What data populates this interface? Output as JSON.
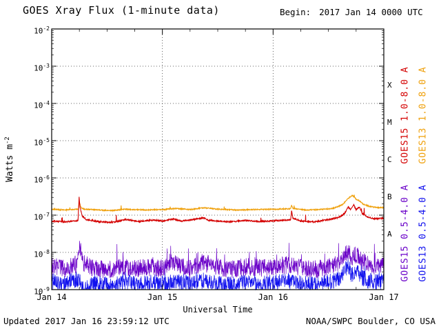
{
  "header": {
    "title": "GOES Xray Flux (1-minute data)",
    "begin_label": "Begin:",
    "begin_value": "2017 Jan 14 0000 UTC"
  },
  "footer": {
    "updated": "Updated 2017 Jan 16 23:59:12 UTC",
    "org": "NOAA/SWPC Boulder, CO USA"
  },
  "legend": {
    "col1": [
      {
        "id": "goes15-long-label",
        "label": "GOES15 1.0-8.0 A",
        "color": "#d40000"
      },
      {
        "id": "goes15-short-label",
        "label": "GOES15 0.5-4.0 A",
        "color": "#6a00c8"
      }
    ],
    "col2": [
      {
        "id": "goes13-long-label",
        "label": "GOES13 1.0-8.0 A",
        "color": "#efa00b"
      },
      {
        "id": "goes13-short-label",
        "label": "GOES13 0.5-4.0 A",
        "color": "#1010ee"
      }
    ]
  },
  "chart_data": {
    "type": "line",
    "title": "GOES Xray Flux (1-minute data)",
    "xlabel": "Universal Time",
    "ylabel_base": "Watts m",
    "ylabel_exp": "-2",
    "y_log_range": [
      -9,
      -2
    ],
    "y_tick_exponents": [
      -2,
      -3,
      -4,
      -5,
      -6,
      -7,
      -8,
      -9
    ],
    "x_range_hours": [
      0,
      72
    ],
    "x_ticks": [
      {
        "hour": 0,
        "label": "Jan 14"
      },
      {
        "hour": 24,
        "label": "Jan 15"
      },
      {
        "hour": 48,
        "label": "Jan 16"
      },
      {
        "hour": 72,
        "label": "Jan 17"
      }
    ],
    "x_grid_hours": [
      24,
      48
    ],
    "grid": "dotted",
    "flare_classes": [
      {
        "label": "X",
        "log_center": -3.5
      },
      {
        "label": "M",
        "log_center": -4.5
      },
      {
        "label": "C",
        "log_center": -5.5
      },
      {
        "label": "B",
        "log_center": -6.5
      },
      {
        "label": "A",
        "log_center": -7.5
      }
    ],
    "series": [
      {
        "id": "goes13-short",
        "name": "GOES13 0.5-4.0 A",
        "color": "#1010ee",
        "width": 0.7,
        "noise": 0.22,
        "spike_prob": 0.02,
        "spike_amp": 0.4,
        "seed": 44,
        "points": [
          [
            0,
            -8.78
          ],
          [
            3,
            -8.84
          ],
          [
            5.5,
            -8.72
          ],
          [
            6.2,
            -8.8
          ],
          [
            7,
            -9.05
          ],
          [
            8,
            -8.9
          ],
          [
            10,
            -8.84
          ],
          [
            13,
            -8.88
          ],
          [
            16,
            -8.8
          ],
          [
            19,
            -8.86
          ],
          [
            22,
            -8.8
          ],
          [
            24,
            -8.84
          ],
          [
            27,
            -8.78
          ],
          [
            30,
            -8.85
          ],
          [
            33,
            -8.76
          ],
          [
            36,
            -8.83
          ],
          [
            39,
            -8.87
          ],
          [
            42,
            -8.8
          ],
          [
            45,
            -8.85
          ],
          [
            48,
            -8.82
          ],
          [
            51,
            -8.78
          ],
          [
            54,
            -8.84
          ],
          [
            57,
            -8.86
          ],
          [
            60,
            -8.8
          ],
          [
            62.5,
            -8.7
          ],
          [
            64.3,
            -8.35
          ],
          [
            65,
            -8.6
          ],
          [
            66,
            -8.5
          ],
          [
            67,
            -8.65
          ],
          [
            68.5,
            -8.75
          ],
          [
            70,
            -8.8
          ],
          [
            72,
            -8.78
          ]
        ]
      },
      {
        "id": "goes15-short",
        "name": "GOES15 0.5-4.0 A",
        "color": "#6a00c8",
        "width": 0.7,
        "noise": 0.24,
        "spike_prob": 0.03,
        "spike_amp": 0.45,
        "seed": 33,
        "points": [
          [
            0,
            -8.38
          ],
          [
            3,
            -8.44
          ],
          [
            5.5,
            -8.3
          ],
          [
            6,
            -7.78
          ],
          [
            6.4,
            -8.05
          ],
          [
            7,
            -8.3
          ],
          [
            9,
            -8.42
          ],
          [
            12,
            -8.48
          ],
          [
            15,
            -8.38
          ],
          [
            18,
            -8.44
          ],
          [
            21,
            -8.4
          ],
          [
            24,
            -8.42
          ],
          [
            26.5,
            -8.25
          ],
          [
            28,
            -8.38
          ],
          [
            30,
            -8.44
          ],
          [
            33,
            -8.28
          ],
          [
            36,
            -8.4
          ],
          [
            39,
            -8.46
          ],
          [
            42,
            -8.38
          ],
          [
            45,
            -8.42
          ],
          [
            48,
            -8.4
          ],
          [
            51,
            -8.34
          ],
          [
            54,
            -8.42
          ],
          [
            57,
            -8.45
          ],
          [
            60,
            -8.4
          ],
          [
            62.5,
            -8.25
          ],
          [
            64.3,
            -7.98
          ],
          [
            65,
            -8.15
          ],
          [
            66,
            -8.05
          ],
          [
            67,
            -8.2
          ],
          [
            68.5,
            -8.32
          ],
          [
            70,
            -8.4
          ],
          [
            72,
            -8.36
          ]
        ]
      },
      {
        "id": "goes13-long",
        "name": "GOES13 1.0-8.0 A",
        "color": "#efa00b",
        "width": 1.1,
        "noise": 0.014,
        "spike_prob": 0.006,
        "spike_amp": 0.12,
        "seed": 22,
        "points": [
          [
            0,
            -6.84
          ],
          [
            3,
            -6.86
          ],
          [
            5.8,
            -6.84
          ],
          [
            6,
            -6.64
          ],
          [
            6.3,
            -6.79
          ],
          [
            7,
            -6.84
          ],
          [
            10,
            -6.86
          ],
          [
            13,
            -6.88
          ],
          [
            16,
            -6.84
          ],
          [
            20,
            -6.86
          ],
          [
            24,
            -6.85
          ],
          [
            27,
            -6.82
          ],
          [
            30,
            -6.85
          ],
          [
            33,
            -6.8
          ],
          [
            36,
            -6.84
          ],
          [
            40,
            -6.86
          ],
          [
            44,
            -6.85
          ],
          [
            48,
            -6.84
          ],
          [
            51.8,
            -6.83
          ],
          [
            52,
            -6.73
          ],
          [
            52.3,
            -6.82
          ],
          [
            55,
            -6.86
          ],
          [
            58,
            -6.85
          ],
          [
            61,
            -6.82
          ],
          [
            63,
            -6.72
          ],
          [
            64.3,
            -6.55
          ],
          [
            65.2,
            -6.47
          ],
          [
            66,
            -6.57
          ],
          [
            66.8,
            -6.62
          ],
          [
            67.5,
            -6.7
          ],
          [
            69,
            -6.77
          ],
          [
            71,
            -6.8
          ],
          [
            72,
            -6.8
          ]
        ]
      },
      {
        "id": "goes15-long",
        "name": "GOES15 1.0-8.0 A",
        "color": "#d40000",
        "width": 1.1,
        "noise": 0.018,
        "spike_prob": 0.01,
        "spike_amp": 0.22,
        "seed": 11,
        "points": [
          [
            0,
            -7.16
          ],
          [
            3,
            -7.18
          ],
          [
            5.7,
            -7.15
          ],
          [
            5.95,
            -6.52
          ],
          [
            6.15,
            -6.78
          ],
          [
            6.6,
            -7.02
          ],
          [
            7.5,
            -7.12
          ],
          [
            10,
            -7.17
          ],
          [
            13,
            -7.2
          ],
          [
            16,
            -7.12
          ],
          [
            19,
            -7.17
          ],
          [
            22,
            -7.13
          ],
          [
            24,
            -7.16
          ],
          [
            26.5,
            -7.1
          ],
          [
            28,
            -7.16
          ],
          [
            30,
            -7.13
          ],
          [
            33,
            -7.07
          ],
          [
            34,
            -7.14
          ],
          [
            36,
            -7.16
          ],
          [
            39,
            -7.18
          ],
          [
            42,
            -7.14
          ],
          [
            45,
            -7.17
          ],
          [
            48,
            -7.15
          ],
          [
            51.8,
            -7.13
          ],
          [
            52,
            -6.88
          ],
          [
            52.3,
            -7.08
          ],
          [
            54,
            -7.16
          ],
          [
            57,
            -7.18
          ],
          [
            60,
            -7.12
          ],
          [
            62.5,
            -7.05
          ],
          [
            63.5,
            -6.95
          ],
          [
            64.3,
            -6.78
          ],
          [
            64.8,
            -6.85
          ],
          [
            65.5,
            -6.73
          ],
          [
            66,
            -6.85
          ],
          [
            66.7,
            -6.78
          ],
          [
            67.3,
            -6.95
          ],
          [
            68.5,
            -7.05
          ],
          [
            70,
            -7.1
          ],
          [
            72,
            -7.08
          ]
        ]
      }
    ]
  }
}
